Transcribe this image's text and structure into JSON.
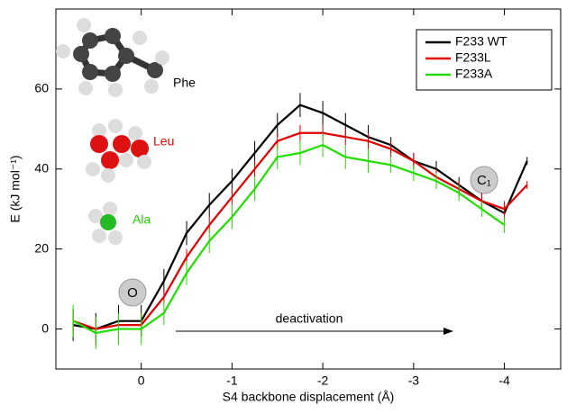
{
  "chart_data": {
    "type": "line",
    "x_label": "S4 backbone displacement (Å)",
    "y_label": "E (kJ mol⁻¹)",
    "x": [
      0.75,
      0.5,
      0.25,
      0,
      -0.25,
      -0.5,
      -0.75,
      -1,
      -1.25,
      -1.5,
      -1.75,
      -2,
      -2.25,
      -2.5,
      -2.75,
      -3,
      -3.25,
      -3.5,
      -3.75,
      -4,
      -4.25
    ],
    "series": [
      {
        "name": "F233 WT",
        "color": "#000000",
        "values": [
          1,
          0,
          2,
          2,
          12,
          24,
          31,
          37,
          44,
          51,
          56,
          54,
          51,
          48,
          46,
          42,
          40,
          36,
          32,
          29,
          42
        ],
        "errors": [
          4,
          4,
          4,
          4,
          3,
          3,
          3,
          3,
          3,
          3,
          3,
          3,
          3,
          3,
          2,
          2,
          2,
          2,
          2,
          2,
          1
        ]
      },
      {
        "name": "F233L",
        "color": "#e00000",
        "values": [
          2,
          0,
          1,
          1,
          8,
          18,
          26,
          33,
          40,
          47,
          49,
          49,
          48,
          47,
          45,
          42,
          38,
          35,
          32,
          30,
          36
        ],
        "errors": [
          3,
          3,
          3,
          3,
          2,
          2,
          2,
          2,
          2,
          2,
          2,
          2,
          2,
          2,
          2,
          2,
          2,
          2,
          2,
          2,
          1
        ]
      },
      {
        "name": "F233A",
        "color": "#22dd00",
        "values": [
          2,
          -1,
          0,
          0,
          4,
          14,
          22,
          28,
          35,
          43,
          44,
          46,
          43,
          42,
          41,
          39,
          37,
          34,
          30,
          26,
          null
        ],
        "errors": [
          4,
          4,
          4,
          4,
          3,
          3,
          3,
          3,
          3,
          3,
          3,
          3,
          3,
          3,
          2,
          2,
          2,
          2,
          2,
          2,
          null
        ]
      }
    ],
    "xlim": [
      0.94,
      -4.62
    ],
    "ylim": [
      -10,
      80
    ],
    "xticks": [
      0,
      -1,
      -2,
      -3,
      -4
    ],
    "yticks": [
      0,
      20,
      40,
      60
    ],
    "legend": "top-right",
    "annotations": {
      "open": "O",
      "closed": "C₁",
      "arrow": "deactivation",
      "phe": "Phe",
      "leu": "Leu",
      "ala": "Ala"
    }
  }
}
